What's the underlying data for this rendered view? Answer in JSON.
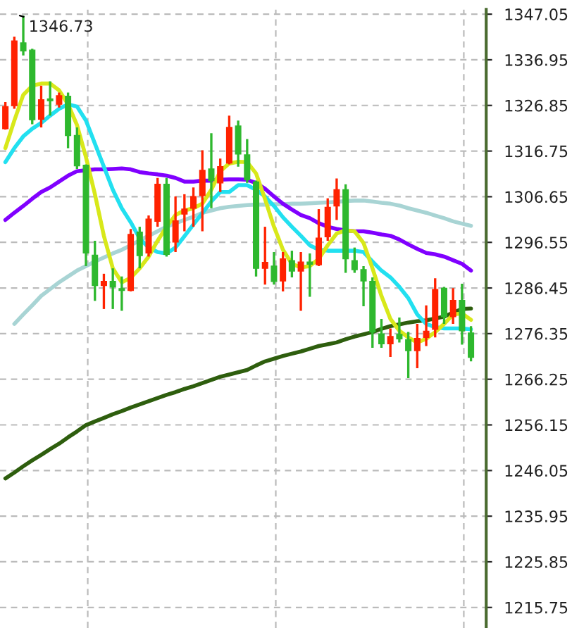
{
  "chart_data": {
    "type": "candlestick",
    "categories": [
      null,
      null,
      null,
      null,
      null,
      null,
      null,
      null,
      null,
      null,
      null,
      null,
      null,
      null,
      null,
      null,
      null,
      null,
      null,
      null,
      null,
      null,
      null,
      null,
      null,
      null,
      null,
      null,
      null,
      null,
      null,
      null,
      null,
      null,
      null,
      null,
      null,
      null,
      null,
      null,
      null,
      null,
      null,
      null,
      null,
      null,
      null,
      null,
      null,
      null,
      null,
      null,
      null
    ],
    "ohlc": [
      [
        1321.7,
        1327.6,
        1321.5,
        1326.6
      ],
      [
        1326.8,
        1342.1,
        1326.1,
        1341.1
      ],
      [
        1340.7,
        1346.73,
        1337.9,
        1338.9
      ],
      [
        1339.1,
        1339.4,
        1322.7,
        1323.7
      ],
      [
        1323.8,
        1331.2,
        1322.0,
        1328.1
      ],
      [
        1328.3,
        1332.2,
        1324.6,
        1327.9
      ],
      [
        1327.1,
        1329.7,
        1326.4,
        1329.0
      ],
      [
        1328.9,
        1329.7,
        1317.4,
        1320.2
      ],
      [
        1320.2,
        1322.0,
        1312.8,
        1313.5
      ],
      [
        1313.6,
        1313.8,
        1291.3,
        1294.2
      ],
      [
        1293.7,
        1296.9,
        1283.6,
        1287.0
      ],
      [
        1287.0,
        1289.6,
        1281.8,
        1287.9
      ],
      [
        1287.9,
        1290.8,
        1281.8,
        1286.7
      ],
      [
        1286.3,
        1289.0,
        1281.4,
        1285.9
      ],
      [
        1285.9,
        1299.5,
        1285.7,
        1298.3
      ],
      [
        1298.8,
        1300.0,
        1290.8,
        1293.6
      ],
      [
        1294.2,
        1302.5,
        1293.4,
        1301.7
      ],
      [
        1301.2,
        1310.8,
        1300.0,
        1309.4
      ],
      [
        1309.4,
        1310.8,
        1293.4,
        1293.9
      ],
      [
        1296.6,
        1306.7,
        1294.4,
        1301.3
      ],
      [
        1302.8,
        1307.2,
        1299.0,
        1303.9
      ],
      [
        1304.1,
        1308.7,
        1300.0,
        1306.7
      ],
      [
        1306.9,
        1316.9,
        1299.0,
        1312.5
      ],
      [
        1312.8,
        1320.7,
        1304.1,
        1310.2
      ],
      [
        1309.7,
        1315.1,
        1307.7,
        1313.3
      ],
      [
        1314.1,
        1324.6,
        1313.8,
        1322.0
      ],
      [
        1322.3,
        1323.5,
        1313.3,
        1316.1
      ],
      [
        1315.9,
        1319.4,
        1309.7,
        1310.4
      ],
      [
        1309.9,
        1310.2,
        1289.0,
        1290.8
      ],
      [
        1290.8,
        1300.0,
        1287.2,
        1292.1
      ],
      [
        1291.3,
        1294.4,
        1287.2,
        1287.9
      ],
      [
        1288.0,
        1294.4,
        1285.7,
        1292.9
      ],
      [
        1292.5,
        1294.7,
        1288.8,
        1290.2
      ],
      [
        1290.2,
        1294.4,
        1281.4,
        1292.2
      ],
      [
        1292.2,
        1294.1,
        1284.5,
        1291.7
      ],
      [
        1291.6,
        1303.9,
        1291.3,
        1297.5
      ],
      [
        1297.8,
        1306.3,
        1296.9,
        1304.3
      ],
      [
        1304.6,
        1310.7,
        1301.5,
        1308.2
      ],
      [
        1308.2,
        1309.4,
        1289.8,
        1292.9
      ],
      [
        1292.5,
        1295.4,
        1289.8,
        1290.5
      ],
      [
        1290.5,
        1291.3,
        1282.4,
        1288.0
      ],
      [
        1287.9,
        1288.8,
        1273.2,
        1276.7
      ],
      [
        1276.3,
        1279.6,
        1273.2,
        1274.1
      ],
      [
        1274.1,
        1277.5,
        1271.2,
        1275.7
      ],
      [
        1276.2,
        1279.9,
        1274.4,
        1275.2
      ],
      [
        1275.0,
        1276.7,
        1266.5,
        1272.6
      ],
      [
        1272.6,
        1278.5,
        1268.7,
        1275.3
      ],
      [
        1275.5,
        1282.6,
        1273.6,
        1276.9
      ],
      [
        1277.3,
        1288.6,
        1275.5,
        1286.1
      ],
      [
        1286.4,
        1286.7,
        1278.5,
        1280.1
      ],
      [
        1280.1,
        1286.4,
        1278.5,
        1283.7
      ],
      [
        1283.7,
        1287.4,
        1273.9,
        1277.0
      ],
      [
        1276.5,
        1278.0,
        1270.2,
        1271.1
      ]
    ],
    "colors": [
      "#ff2200",
      "#ff2200",
      "#2eb82e",
      "#2eb82e",
      "#ff2200",
      "#2eb82e",
      "#ff2200",
      "#2eb82e",
      "#2eb82e",
      "#2eb82e",
      "#2eb82e",
      "#ff2200",
      "#2eb82e",
      "#2eb82e",
      "#ff2200",
      "#2eb82e",
      "#ff2200",
      "#ff2200",
      "#2eb82e",
      "#ff2200",
      "#ff2200",
      "#ff2200",
      "#ff2200",
      "#2eb82e",
      "#ff2200",
      "#ff2200",
      "#2eb82e",
      "#2eb82e",
      "#2eb82e",
      "#ff2200",
      "#2eb82e",
      "#ff2200",
      "#2eb82e",
      "#ff2200",
      "#2eb82e",
      "#ff2200",
      "#ff2200",
      "#ff2200",
      "#2eb82e",
      "#2eb82e",
      "#2eb82e",
      "#2eb82e",
      "#2eb82e",
      "#ff2200",
      "#2eb82e",
      "#2eb82e",
      "#ff2200",
      "#ff2200",
      "#ff2200",
      "#2eb82e",
      "#ff2200",
      "#2eb82e",
      "#2eb82e"
    ],
    "series": [
      {
        "type": "line",
        "color": "#2e5e0e",
        "values": [
          1244.3,
          1245.6,
          1247.0,
          1248.3,
          1249.5,
          1250.8,
          1252.0,
          1253.4,
          1254.7,
          1256.1,
          1256.9,
          1257.7,
          1258.5,
          1259.2,
          1260.0,
          1260.7,
          1261.4,
          1262.1,
          1262.8,
          1263.4,
          1264.1,
          1264.7,
          1265.4,
          1266.1,
          1266.8,
          1267.3,
          1267.8,
          1268.3,
          1269.3,
          1270.2,
          1270.8,
          1271.4,
          1271.9,
          1272.4,
          1273.0,
          1273.6,
          1274.0,
          1274.4,
          1275.1,
          1275.7,
          1276.2,
          1276.7,
          1277.4,
          1278.0,
          1278.4,
          1278.8,
          1279.1,
          1279.3,
          1279.7,
          1280.1,
          1281.0,
          1281.8,
          1281.9
        ]
      },
      {
        "type": "line",
        "color": "#a8d4d4",
        "values": [
          null,
          1278.5,
          1280.6,
          1282.6,
          1284.7,
          1286.2,
          1287.7,
          1289.0,
          1290.3,
          1291.3,
          1292.3,
          1293.2,
          1294.1,
          1294.9,
          1295.9,
          1297.0,
          1298.0,
          1299.0,
          1300.0,
          1300.8,
          1301.5,
          1302.2,
          1303.1,
          1303.6,
          1304.1,
          1304.4,
          1304.6,
          1304.8,
          1304.9,
          1304.9,
          1305.0,
          1305.0,
          1305.1,
          1305.1,
          1305.2,
          1305.3,
          1305.4,
          1305.5,
          1305.7,
          1305.8,
          1305.8,
          1305.6,
          1305.3,
          1305.1,
          1304.7,
          1304.1,
          1303.6,
          1303.1,
          1302.5,
          1301.9,
          1301.2,
          1300.7,
          1300.2
        ]
      },
      {
        "type": "line",
        "color": "#8000ff",
        "values": [
          1301.5,
          1303.1,
          1304.6,
          1306.2,
          1307.7,
          1308.7,
          1310.0,
          1311.3,
          1312.3,
          1312.5,
          1312.7,
          1312.7,
          1312.8,
          1312.9,
          1312.7,
          1312.1,
          1311.8,
          1311.6,
          1311.3,
          1310.8,
          1310.0,
          1310.0,
          1310.2,
          1310.2,
          1310.4,
          1310.5,
          1310.5,
          1310.4,
          1309.7,
          1308.4,
          1306.7,
          1305.1,
          1303.8,
          1302.6,
          1301.9,
          1300.8,
          1300.0,
          1299.5,
          1299.2,
          1299.0,
          1299.0,
          1298.7,
          1298.3,
          1298.0,
          1297.2,
          1296.1,
          1295.1,
          1294.2,
          1293.9,
          1293.4,
          1292.6,
          1291.8,
          1290.3
        ]
      },
      {
        "type": "line",
        "color": "#22e0f0",
        "values": [
          1314.3,
          1317.4,
          1320.0,
          1321.7,
          1323.0,
          1324.6,
          1326.1,
          1327.1,
          1326.6,
          1323.5,
          1318.4,
          1313.3,
          1308.2,
          1304.1,
          1301.0,
          1297.4,
          1295.4,
          1294.4,
          1294.1,
          1295.4,
          1297.9,
          1300.5,
          1303.0,
          1305.6,
          1307.7,
          1307.7,
          1309.2,
          1309.2,
          1308.2,
          1306.7,
          1304.6,
          1302.1,
          1300.0,
          1298.0,
          1295.9,
          1294.9,
          1294.7,
          1294.7,
          1294.7,
          1294.7,
          1294.4,
          1292.3,
          1290.3,
          1288.8,
          1286.7,
          1284.2,
          1280.6,
          1278.5,
          1277.8,
          1277.5,
          1277.5,
          1277.5,
          1277.3
        ]
      },
      {
        "type": "line",
        "color": "#d8e81a",
        "values": [
          1317.4,
          1323.5,
          1329.2,
          1331.2,
          1331.7,
          1331.7,
          1330.2,
          1327.1,
          1322.5,
          1315.4,
          1307.2,
          1298.0,
          1290.8,
          1287.7,
          1288.7,
          1290.8,
          1293.4,
          1296.9,
          1300.0,
          1302.6,
          1303.6,
          1304.1,
          1305.1,
          1308.2,
          1312.3,
          1314.0,
          1314.4,
          1314.3,
          1311.8,
          1306.1,
          1300.0,
          1294.9,
          1291.8,
          1291.0,
          1291.3,
          1292.9,
          1295.9,
          1298.5,
          1299.2,
          1299.0,
          1296.4,
          1290.8,
          1284.7,
          1279.6,
          1277.0,
          1275.5,
          1274.4,
          1275.2,
          1276.7,
          1278.5,
          1280.6,
          1280.8,
          1279.4
        ]
      }
    ],
    "annotations": [
      "1346.73"
    ],
    "ylim": [
      1211.2,
      1348.1
    ],
    "yticks": [
      1347.05,
      1336.95,
      1326.85,
      1316.75,
      1306.65,
      1296.55,
      1286.45,
      1276.35,
      1266.25,
      1256.15,
      1246.05,
      1235.95,
      1225.85,
      1215.75
    ],
    "grid": true,
    "marker": "none",
    "line_style": "solid",
    "tick_labels": "y"
  }
}
